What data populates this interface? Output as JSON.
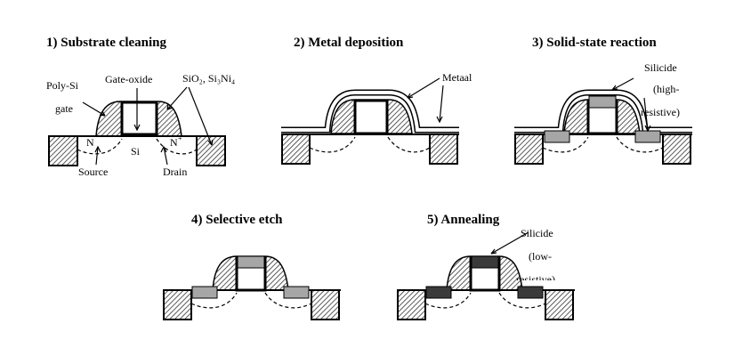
{
  "steps": [
    {
      "title": "1)   Substrate cleaning"
    },
    {
      "title": "2)   Metal deposition"
    },
    {
      "title": "3)   Solid-state reaction"
    },
    {
      "title": "4)   Selective etch"
    },
    {
      "title": "5)   Annealing"
    }
  ],
  "labels": {
    "poly_si_1": "Poly-Si",
    "poly_si_2": "gate",
    "gate_oxide": "Gate-oxide",
    "spacer": "SiO₂, Si₃Ni₄",
    "n_left": "N",
    "n_right": "N",
    "n_right_sup": "+",
    "si": "Si",
    "source": "Source",
    "drain": "Drain",
    "metaal": "Metaal",
    "silicide3_1": "Silicide",
    "silicide3_2": "(high-",
    "silicide3_3": "resistive)",
    "silicide5_1": "Silicide",
    "silicide5_2": "(low-",
    "silicide5_3": "resistive)"
  },
  "colors": {
    "high_resistive_silicide": "#a6a6a6",
    "low_resistive_silicide": "#3a3a3a",
    "metal_layer": "#ffffff",
    "outline": "#000000"
  }
}
